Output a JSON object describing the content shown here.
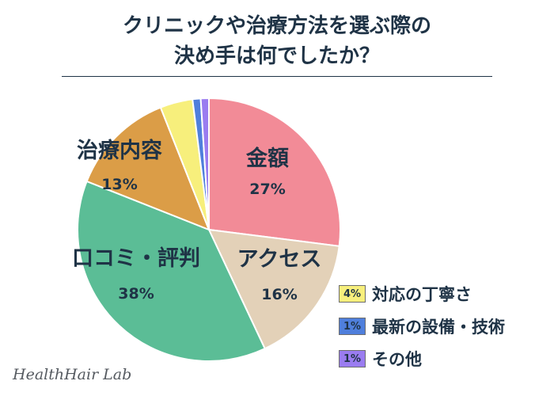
{
  "title_line1": "クリニックや治療方法を選ぶ際の",
  "title_line2": "決め手は何でしたか？",
  "brand": "HealthHair Lab",
  "chart_data": {
    "type": "pie",
    "title": "クリニックや治療方法を選ぶ際の決め手は何でしたか？",
    "slices": [
      {
        "name": "金額",
        "value": 27,
        "label": "27%",
        "color": "#f28b97"
      },
      {
        "name": "アクセス",
        "value": 16,
        "label": "16%",
        "color": "#e3d1b8"
      },
      {
        "name": "口コミ・評判",
        "value": 38,
        "label": "38%",
        "color": "#5bbd96"
      },
      {
        "name": "治療内容",
        "value": 13,
        "label": "13%",
        "color": "#db9d47"
      },
      {
        "name": "対応の丁寧さ",
        "value": 4,
        "label": "4%",
        "color": "#f7ef7c"
      },
      {
        "name": "最新の設備・技術",
        "value": 1,
        "label": "1%",
        "color": "#4f7fdc"
      },
      {
        "name": "その他",
        "value": 1,
        "label": "1%",
        "color": "#9a7cf0"
      }
    ]
  }
}
